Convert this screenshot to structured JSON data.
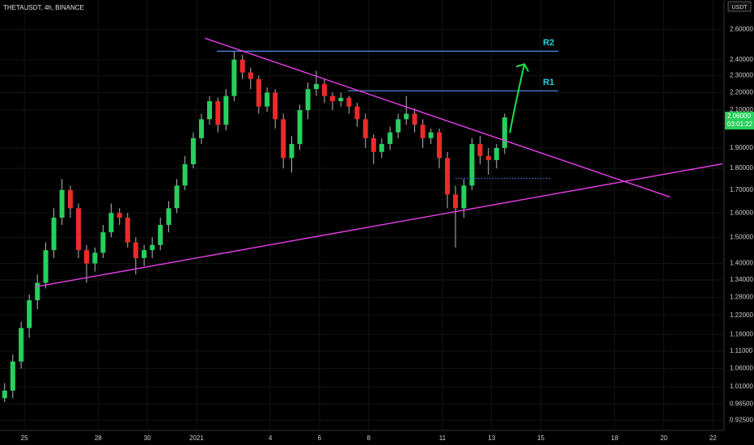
{
  "chart_data": {
    "type": "candlestick",
    "title": "THETAUSDT, 4h, BINANCE",
    "currency": "USDT",
    "log_scale": true,
    "grid": true,
    "up_color": "#26d05c",
    "down_color": "#ec2a2a",
    "wick_color": "#b8b8b8",
    "x": [
      -0.8,
      -0.47,
      -0.13,
      0.2,
      0.53,
      0.87,
      1.2,
      1.53,
      1.87,
      2.2,
      2.53,
      2.87,
      3.2,
      3.53,
      3.87,
      4.2,
      4.53,
      4.87,
      5.2,
      5.53,
      5.87,
      6.2,
      6.53,
      6.87,
      7.2,
      7.53,
      7.87,
      8.2,
      8.53,
      8.87,
      9.2,
      9.53,
      9.87,
      10.2,
      10.53,
      10.87,
      11.2,
      11.53,
      11.87,
      12.2,
      12.53,
      12.87,
      13.2,
      13.53,
      13.87,
      14.2,
      14.53,
      14.87,
      15.2,
      15.53,
      15.87,
      16.2,
      16.53,
      16.87,
      17.2,
      17.53,
      17.87,
      18.2,
      18.53,
      18.87,
      19.2,
      19.53
    ],
    "open": [
      0.98,
      1.0,
      1.08,
      1.18,
      1.27,
      1.33,
      1.45,
      1.58,
      1.7,
      1.62,
      1.45,
      1.4,
      1.44,
      1.52,
      1.6,
      1.58,
      1.48,
      1.42,
      1.45,
      1.47,
      1.55,
      1.62,
      1.72,
      1.82,
      1.95,
      2.05,
      2.15,
      2.02,
      2.18,
      2.4,
      2.32,
      2.28,
      2.12,
      2.2,
      2.05,
      1.85,
      1.92,
      2.1,
      2.22,
      2.25,
      2.18,
      2.15,
      2.17,
      2.12,
      2.05,
      1.95,
      1.88,
      1.92,
      1.98,
      2.05,
      2.08,
      2.02,
      1.95,
      1.98,
      1.85,
      1.68,
      1.62,
      1.72,
      1.92,
      1.86,
      1.84,
      1.9
    ],
    "high": [
      1.02,
      1.1,
      1.2,
      1.29,
      1.36,
      1.48,
      1.62,
      1.75,
      1.72,
      1.64,
      1.47,
      1.46,
      1.55,
      1.64,
      1.62,
      1.6,
      1.5,
      1.47,
      1.5,
      1.58,
      1.65,
      1.75,
      1.86,
      1.98,
      2.08,
      2.18,
      2.17,
      2.22,
      2.45,
      2.43,
      2.35,
      2.3,
      2.23,
      2.22,
      2.08,
      1.96,
      2.13,
      2.26,
      2.33,
      2.28,
      2.2,
      2.2,
      2.18,
      2.14,
      2.08,
      1.97,
      1.95,
      2.01,
      2.08,
      2.18,
      2.11,
      2.05,
      2.0,
      2.0,
      1.88,
      1.72,
      1.75,
      1.95,
      1.96,
      1.9,
      1.92,
      2.08
    ],
    "low": [
      0.97,
      0.98,
      1.06,
      1.15,
      1.24,
      1.31,
      1.42,
      1.55,
      1.58,
      1.42,
      1.33,
      1.37,
      1.42,
      1.5,
      1.55,
      1.46,
      1.36,
      1.39,
      1.42,
      1.45,
      1.52,
      1.6,
      1.7,
      1.8,
      1.92,
      2.02,
      1.98,
      1.99,
      2.15,
      2.28,
      2.22,
      2.08,
      2.09,
      2.0,
      1.8,
      1.78,
      1.89,
      2.05,
      2.18,
      2.14,
      2.1,
      2.12,
      2.08,
      2.01,
      1.9,
      1.82,
      1.85,
      1.89,
      1.95,
      2.02,
      1.98,
      1.9,
      1.92,
      1.8,
      1.62,
      1.46,
      1.58,
      1.7,
      1.82,
      1.77,
      1.8,
      1.87
    ],
    "close": [
      1.0,
      1.08,
      1.18,
      1.27,
      1.33,
      1.45,
      1.58,
      1.7,
      1.62,
      1.45,
      1.4,
      1.44,
      1.52,
      1.6,
      1.58,
      1.48,
      1.42,
      1.45,
      1.47,
      1.55,
      1.62,
      1.72,
      1.82,
      1.95,
      2.05,
      2.15,
      2.02,
      2.18,
      2.4,
      2.32,
      2.28,
      2.12,
      2.2,
      2.05,
      1.85,
      1.92,
      2.1,
      2.22,
      2.25,
      2.18,
      2.15,
      2.17,
      2.12,
      2.05,
      1.95,
      1.88,
      1.92,
      1.98,
      2.05,
      2.08,
      2.02,
      1.95,
      1.98,
      1.85,
      1.68,
      1.62,
      1.72,
      1.92,
      1.86,
      1.84,
      1.9,
      2.06
    ],
    "xlim": [
      -0.99,
      28.45
    ],
    "xticks": [
      {
        "value": 0,
        "label": "25"
      },
      {
        "value": 3,
        "label": "28"
      },
      {
        "value": 5,
        "label": "30"
      },
      {
        "value": 7,
        "label": "2021"
      },
      {
        "value": 10,
        "label": "4"
      },
      {
        "value": 12,
        "label": "6"
      },
      {
        "value": 14,
        "label": "8"
      },
      {
        "value": 17,
        "label": "11"
      },
      {
        "value": 19,
        "label": "13"
      },
      {
        "value": 21,
        "label": "15"
      },
      {
        "value": 24,
        "label": "18"
      },
      {
        "value": 26,
        "label": "20"
      },
      {
        "value": 28,
        "label": "22"
      }
    ],
    "ylim": [
      0.9,
      2.81
    ],
    "yticks": [
      {
        "value": 0.925,
        "label": "0.92500"
      },
      {
        "value": 0.965,
        "label": "0.96500"
      },
      {
        "value": 1.01,
        "label": "1.01000"
      },
      {
        "value": 1.06,
        "label": "1.06000"
      },
      {
        "value": 1.11,
        "label": "1.11000"
      },
      {
        "value": 1.16,
        "label": "1.16000"
      },
      {
        "value": 1.22,
        "label": "1.22000"
      },
      {
        "value": 1.28,
        "label": "1.28000"
      },
      {
        "value": 1.34,
        "label": "1.34000"
      },
      {
        "value": 1.4,
        "label": "1.40000"
      },
      {
        "value": 1.5,
        "label": "1.50000"
      },
      {
        "value": 1.6,
        "label": "1.60000"
      },
      {
        "value": 1.7,
        "label": "1.70000"
      },
      {
        "value": 1.8,
        "label": "1.80000"
      },
      {
        "value": 1.9,
        "label": "1.90000"
      },
      {
        "value": 2.1,
        "label": "2.10000"
      },
      {
        "value": 2.2,
        "label": "2.20000"
      },
      {
        "value": 2.3,
        "label": "2.30000"
      },
      {
        "value": 2.4,
        "label": "2.40000"
      },
      {
        "value": 2.6,
        "label": "2.60000"
      }
    ],
    "last_price": {
      "value": 2.06,
      "label": "2.06000"
    },
    "countdown": "03:01:22",
    "trend_lines": [
      {
        "color": "#e83ee8",
        "points": [
          [
            7.34,
            2.54
          ],
          [
            26.25,
            1.669
          ]
        ]
      },
      {
        "color": "#e83ee8",
        "points": [
          [
            0.46,
            1.316
          ],
          [
            28.39,
            1.822
          ]
        ]
      }
    ],
    "levels": [
      {
        "name": "R2",
        "value": 2.454,
        "x": [
          7.83,
          21.71
        ],
        "color": "#4f7fd6"
      },
      {
        "name": "R1",
        "value": 2.21,
        "x": [
          13.16,
          21.71
        ],
        "color": "#4f7fd6"
      }
    ],
    "dotted_level": {
      "value": 1.753,
      "x": [
        17.53,
        21.38
      ],
      "color": "#3a78d8"
    },
    "arrow": {
      "from": [
        19.74,
        1.977
      ],
      "to": [
        20.33,
        2.371
      ],
      "color": "#1fe04a"
    }
  }
}
